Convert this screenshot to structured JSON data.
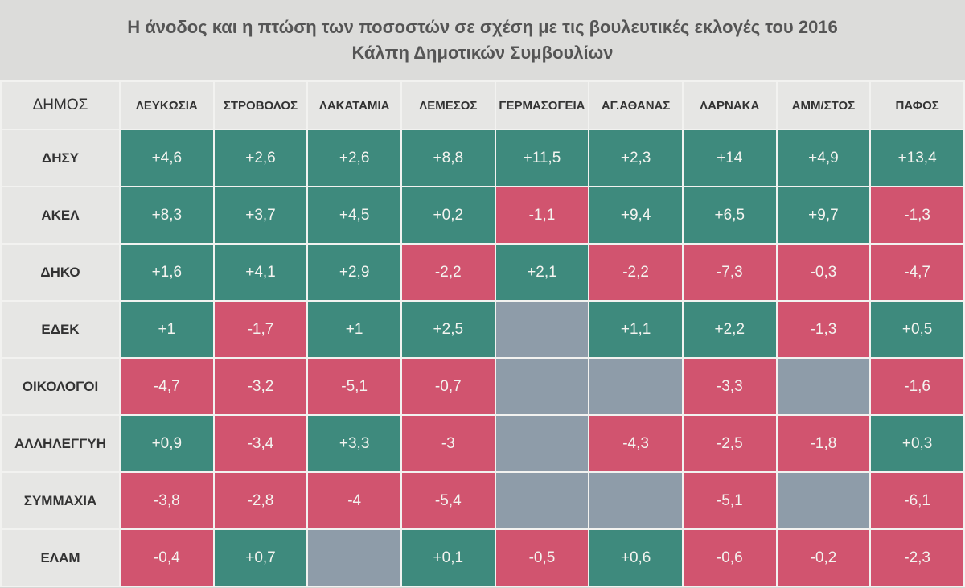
{
  "header": {
    "title": [
      "Η άνοδος και η πτώση των ποσοστών σε σχέση με τις βουλευτικές εκλογές του 2016",
      "Κάλπη Δημοτικών Συμβουλίων"
    ]
  },
  "table": {
    "corner": "ΔΗΜΟΣ",
    "columns": [
      "ΛΕΥΚΩΣΙΑ",
      "ΣΤΡΟΒΟΛΟΣ",
      "ΛΑΚΑΤΑΜΙΑ",
      "ΛΕΜΕΣΟΣ",
      "ΓΕΡΜΑΣΟΓΕΙΑ",
      "ΑΓ.ΑΘΑΝΑΣ",
      "ΛΑΡΝΑΚΑ",
      "ΑΜΜ/ΣΤΟΣ",
      "ΠΑΦΟΣ"
    ],
    "rows": [
      {
        "label": "ΔΗΣΥ",
        "cells": [
          "+4,6",
          "+2,6",
          "+2,6",
          "+8,8",
          "+11,5",
          "+2,3",
          "+14",
          "+4,9",
          "+13,4"
        ]
      },
      {
        "label": "ΑΚΕΛ",
        "cells": [
          "+8,3",
          "+3,7",
          "+4,5",
          "+0,2",
          "-1,1",
          "+9,4",
          "+6,5",
          "+9,7",
          "-1,3"
        ]
      },
      {
        "label": "ΔΗΚΟ",
        "cells": [
          "+1,6",
          "+4,1",
          "+2,9",
          "-2,2",
          "+2,1",
          "-2,2",
          "-7,3",
          "-0,3",
          "-4,7"
        ]
      },
      {
        "label": "ΕΔΕΚ",
        "cells": [
          "+1",
          "-1,7",
          "+1",
          "+2,5",
          null,
          "+1,1",
          "+2,2",
          "-1,3",
          "+0,5"
        ]
      },
      {
        "label": "ΟΙΚΟΛΟΓΟΙ",
        "cells": [
          "-4,7",
          "-3,2",
          "-5,1",
          "-0,7",
          null,
          null,
          "-3,3",
          null,
          "-1,6"
        ]
      },
      {
        "label": "ΑΛΛΗΛΕΓΓΥΗ",
        "cells": [
          "+0,9",
          "-3,4",
          "+3,3",
          "-3",
          null,
          "-4,3",
          "-2,5",
          "-1,8",
          "+0,3"
        ]
      },
      {
        "label": "ΣΥΜΜΑΧΙΑ",
        "cells": [
          "-3,8",
          "-2,8",
          "-4",
          "-5,4",
          null,
          null,
          "-5,1",
          null,
          "-6,1"
        ]
      },
      {
        "label": "ΕΛΑΜ",
        "cells": [
          "-0,4",
          "+0,7",
          null,
          "+0,1",
          "-0,5",
          "+0,6",
          "-0,6",
          "-0,2",
          "-2,3"
        ]
      }
    ]
  }
}
